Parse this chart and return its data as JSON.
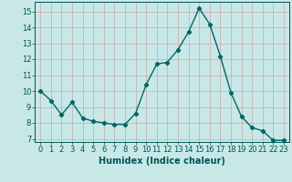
{
  "x": [
    0,
    1,
    2,
    3,
    4,
    5,
    6,
    7,
    8,
    9,
    10,
    11,
    12,
    13,
    14,
    15,
    16,
    17,
    18,
    19,
    20,
    21,
    22,
    23
  ],
  "y": [
    10.0,
    9.4,
    8.5,
    9.3,
    8.3,
    8.1,
    8.0,
    7.9,
    7.9,
    8.6,
    10.4,
    11.7,
    11.8,
    12.6,
    13.7,
    15.2,
    14.2,
    12.2,
    9.9,
    8.4,
    7.7,
    7.5,
    6.9,
    6.9
  ],
  "line_color": "#006666",
  "marker": "D",
  "marker_size": 2.2,
  "line_width": 1.0,
  "bg_color": "#c8e8e8",
  "grid_color": "#c8a8a8",
  "tick_color": "#005555",
  "xlabel": "Humidex (Indice chaleur)",
  "xlabel_fontsize": 7,
  "ylim": [
    6.8,
    15.6
  ],
  "xlim": [
    -0.5,
    23.5
  ],
  "yticks": [
    7,
    8,
    9,
    10,
    11,
    12,
    13,
    14,
    15
  ],
  "xticks": [
    0,
    1,
    2,
    3,
    4,
    5,
    6,
    7,
    8,
    9,
    10,
    11,
    12,
    13,
    14,
    15,
    16,
    17,
    18,
    19,
    20,
    21,
    22,
    23
  ],
  "tick_fontsize": 6
}
